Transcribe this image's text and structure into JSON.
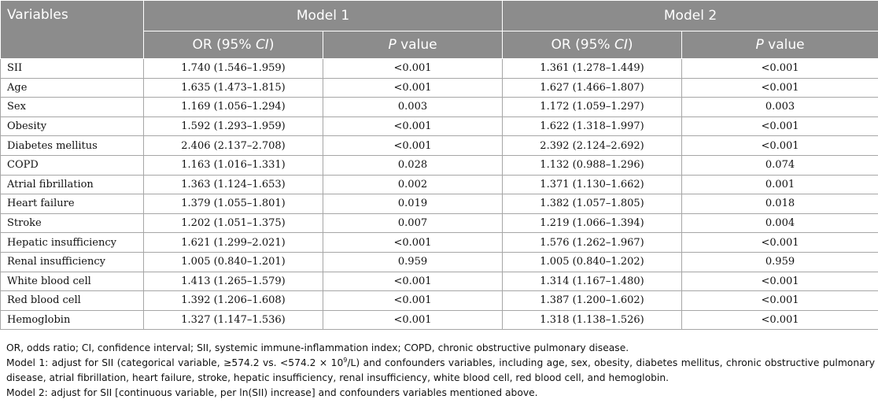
{
  "header": {
    "variables": "Variables",
    "model1": "Model 1",
    "model2": "Model 2",
    "or_pre": "OR (95% ",
    "ci": "CI",
    "or_post": ")",
    "p_italic": "P",
    "p_rest": " value"
  },
  "rows": [
    {
      "variable": "SII",
      "m1_or": "1.740 (1.546–1.959)",
      "m1_p": "<0.001",
      "m2_or": "1.361 (1.278–1.449)",
      "m2_p": "<0.001"
    },
    {
      "variable": "Age",
      "m1_or": "1.635 (1.473–1.815)",
      "m1_p": "<0.001",
      "m2_or": "1.627 (1.466–1.807)",
      "m2_p": "<0.001"
    },
    {
      "variable": "Sex",
      "m1_or": "1.169 (1.056–1.294)",
      "m1_p": "0.003",
      "m2_or": "1.172 (1.059–1.297)",
      "m2_p": "0.003"
    },
    {
      "variable": "Obesity",
      "m1_or": "1.592 (1.293–1.959)",
      "m1_p": "<0.001",
      "m2_or": "1.622 (1.318–1.997)",
      "m2_p": "<0.001"
    },
    {
      "variable": "Diabetes mellitus",
      "m1_or": "2.406 (2.137–2.708)",
      "m1_p": "<0.001",
      "m2_or": "2.392 (2.124–2.692)",
      "m2_p": "<0.001"
    },
    {
      "variable": "COPD",
      "m1_or": "1.163 (1.016–1.331)",
      "m1_p": "0.028",
      "m2_or": "1.132 (0.988–1.296)",
      "m2_p": "0.074"
    },
    {
      "variable": "Atrial fibrillation",
      "m1_or": "1.363 (1.124–1.653)",
      "m1_p": "0.002",
      "m2_or": "1.371 (1.130–1.662)",
      "m2_p": "0.001"
    },
    {
      "variable": "Heart failure",
      "m1_or": "1.379 (1.055–1.801)",
      "m1_p": "0.019",
      "m2_or": "1.382 (1.057–1.805)",
      "m2_p": "0.018"
    },
    {
      "variable": "Stroke",
      "m1_or": "1.202 (1.051–1.375)",
      "m1_p": "0.007",
      "m2_or": "1.219 (1.066–1.394)",
      "m2_p": "0.004"
    },
    {
      "variable": "Hepatic insufficiency",
      "m1_or": "1.621 (1.299–2.021)",
      "m1_p": "<0.001",
      "m2_or": "1.576 (1.262–1.967)",
      "m2_p": "<0.001"
    },
    {
      "variable": "Renal insufficiency",
      "m1_or": "1.005 (0.840–1.201)",
      "m1_p": "0.959",
      "m2_or": "1.005 (0.840–1.202)",
      "m2_p": "0.959"
    },
    {
      "variable": "White blood cell",
      "m1_or": "1.413 (1.265–1.579)",
      "m1_p": "<0.001",
      "m2_or": "1.314 (1.167–1.480)",
      "m2_p": "<0.001"
    },
    {
      "variable": "Red blood cell",
      "m1_or": "1.392 (1.206–1.608)",
      "m1_p": "<0.001",
      "m2_or": "1.387 (1.200–1.602)",
      "m2_p": "<0.001"
    },
    {
      "variable": "Hemoglobin",
      "m1_or": "1.327 (1.147–1.536)",
      "m1_p": "<0.001",
      "m2_or": "1.318 (1.138–1.526)",
      "m2_p": "<0.001"
    }
  ],
  "notes": {
    "abbrev": "OR, odds ratio; CI, confidence interval; SII, systemic immune-inflammation index; COPD, chronic obstructive pulmonary disease.",
    "model1_pre": "Model 1: adjust for SII (categorical variable, ≥574.2 vs. <574.2 × 10",
    "model1_sup": "9",
    "model1_post": "/L) and confounders variables, including age, sex, obesity, diabetes mellitus, chronic obstructive pulmonary disease, atrial fibrillation, heart failure, stroke, hepatic insufficiency, renal insufficiency, white blood cell, red blood cell, and hemoglobin.",
    "model2": "Model 2: adjust for SII [continuous variable, per ln(SII) increase] and confounders variables mentioned above."
  },
  "colors": {
    "header_bg": "#8c8c8c",
    "header_text": "#ffffff",
    "grid": "#a6a6a6"
  }
}
